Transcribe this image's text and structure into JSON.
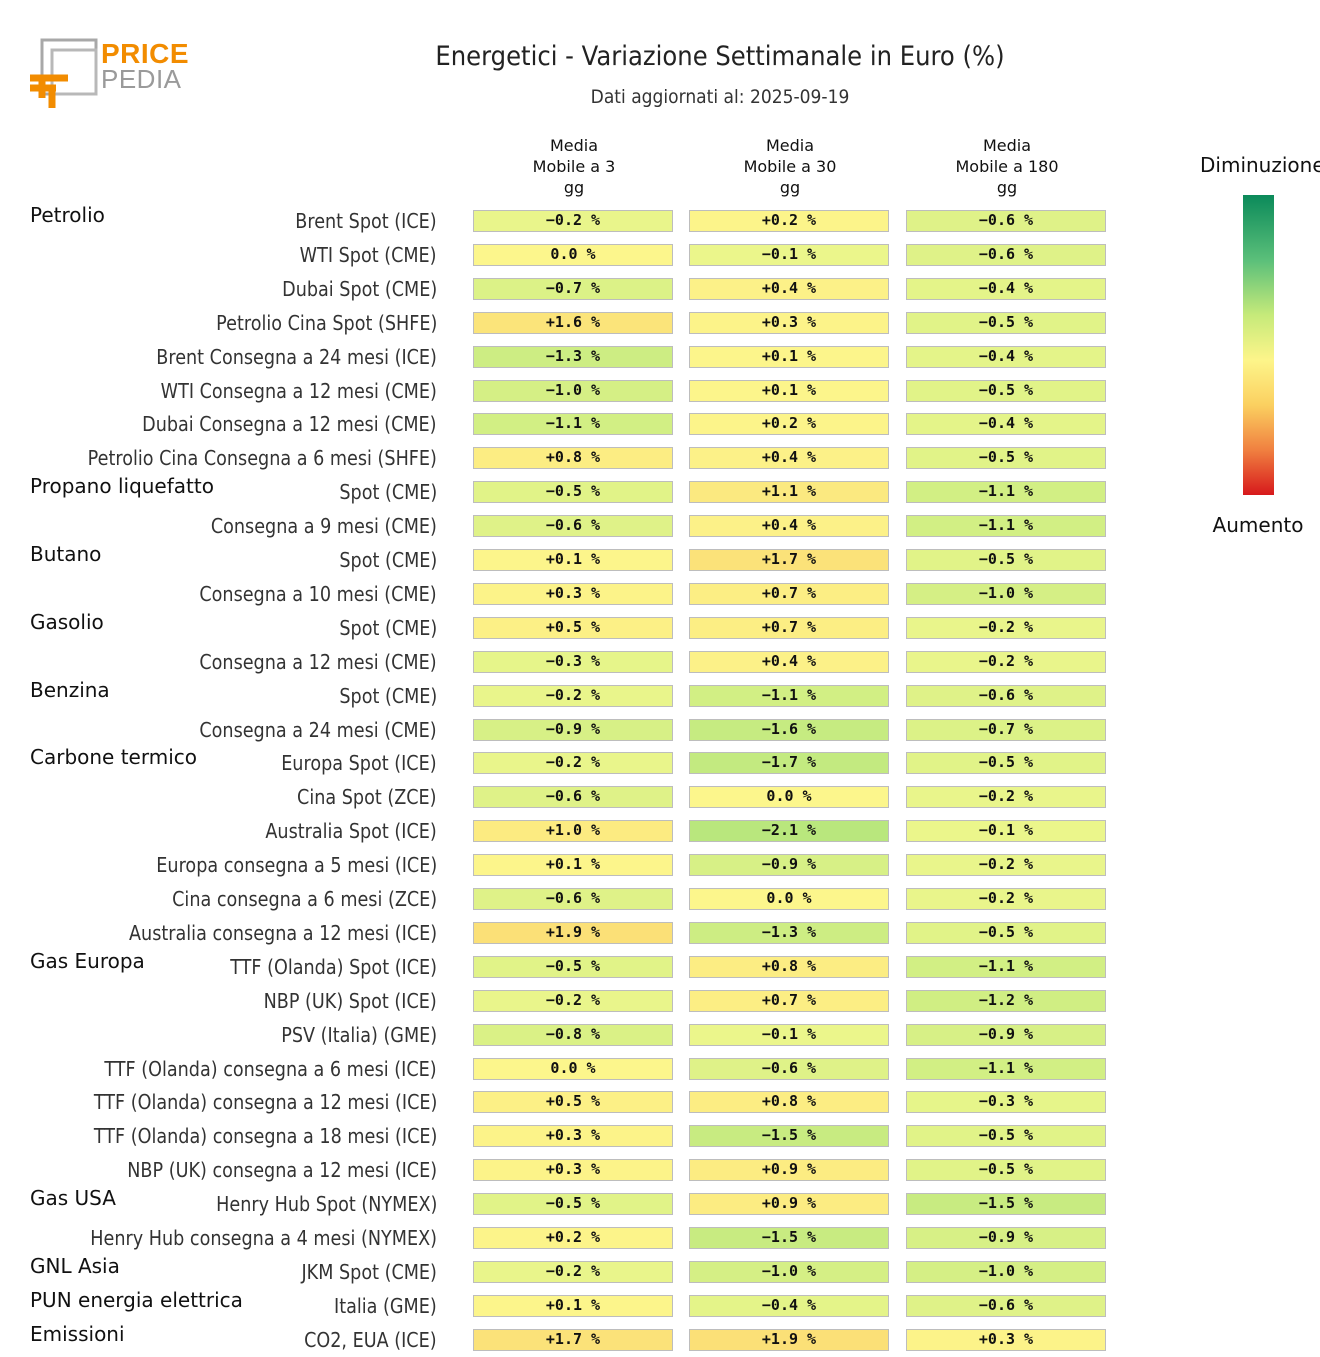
{
  "logo": {
    "line1": "PRICE",
    "line2": "PEDIA"
  },
  "header": {
    "title": "Energetici - Variazione Settimanale in Euro (%)",
    "subtitle": "Dati aggiornati al: 2025-09-19"
  },
  "columns": [
    [
      "Media",
      "Mobile a 3",
      "gg"
    ],
    [
      "Media",
      "Mobile a 30",
      "gg"
    ],
    [
      "Media",
      "Mobile a 180",
      "gg"
    ]
  ],
  "legend": {
    "top": "Diminuzione",
    "bottom": "Aumento"
  },
  "chart_data": {
    "type": "heatmap",
    "title": "Energetici - Variazione Settimanale in Euro (%)",
    "unit": "%",
    "columns": [
      "Media Mobile a 3 gg",
      "Media Mobile a 30 gg",
      "Media Mobile a 180 gg"
    ],
    "rows": [
      {
        "group": "Petrolio",
        "label": "Brent Spot (ICE)",
        "values": [
          -0.2,
          0.2,
          -0.6
        ]
      },
      {
        "group": "",
        "label": "WTI Spot (CME)",
        "values": [
          0.0,
          -0.1,
          -0.6
        ]
      },
      {
        "group": "",
        "label": "Dubai Spot (CME)",
        "values": [
          -0.7,
          0.4,
          -0.4
        ]
      },
      {
        "group": "",
        "label": "Petrolio Cina Spot (SHFE)",
        "values": [
          1.6,
          0.3,
          -0.5
        ]
      },
      {
        "group": "",
        "label": "Brent Consegna a 24 mesi (ICE)",
        "values": [
          -1.3,
          0.1,
          -0.4
        ]
      },
      {
        "group": "",
        "label": "WTI Consegna a 12 mesi (CME)",
        "values": [
          -1.0,
          0.1,
          -0.5
        ]
      },
      {
        "group": "",
        "label": "Dubai Consegna a 12 mesi (CME)",
        "values": [
          -1.1,
          0.2,
          -0.4
        ]
      },
      {
        "group": "",
        "label": "Petrolio Cina Consegna a 6 mesi (SHFE)",
        "values": [
          0.8,
          0.4,
          -0.5
        ]
      },
      {
        "group": "Propano liquefatto",
        "label": "Spot (CME)",
        "values": [
          -0.5,
          1.1,
          -1.1
        ]
      },
      {
        "group": "",
        "label": "Consegna a 9 mesi (CME)",
        "values": [
          -0.6,
          0.4,
          -1.1
        ]
      },
      {
        "group": "Butano",
        "label": "Spot (CME)",
        "values": [
          0.1,
          1.7,
          -0.5
        ]
      },
      {
        "group": "",
        "label": "Consegna a 10 mesi (CME)",
        "values": [
          0.3,
          0.7,
          -1.0
        ]
      },
      {
        "group": "Gasolio",
        "label": "Spot (CME)",
        "values": [
          0.5,
          0.7,
          -0.2
        ]
      },
      {
        "group": "",
        "label": "Consegna a 12 mesi (CME)",
        "values": [
          -0.3,
          0.4,
          -0.2
        ]
      },
      {
        "group": "Benzina",
        "label": "Spot (CME)",
        "values": [
          -0.2,
          -1.1,
          -0.6
        ]
      },
      {
        "group": "",
        "label": "Consegna a 24 mesi (CME)",
        "values": [
          -0.9,
          -1.6,
          -0.7
        ]
      },
      {
        "group": "Carbone termico",
        "label": "Europa Spot (ICE)",
        "values": [
          -0.2,
          -1.7,
          -0.5
        ]
      },
      {
        "group": "",
        "label": "Cina Spot (ZCE)",
        "values": [
          -0.6,
          0.0,
          -0.2
        ]
      },
      {
        "group": "",
        "label": "Australia Spot (ICE)",
        "values": [
          1.0,
          -2.1,
          -0.1
        ]
      },
      {
        "group": "",
        "label": "Europa consegna a 5 mesi (ICE)",
        "values": [
          0.1,
          -0.9,
          -0.2
        ]
      },
      {
        "group": "",
        "label": "Cina consegna a 6 mesi (ZCE)",
        "values": [
          -0.6,
          0.0,
          -0.2
        ]
      },
      {
        "group": "",
        "label": "Australia consegna a 12 mesi (ICE)",
        "values": [
          1.9,
          -1.3,
          -0.5
        ]
      },
      {
        "group": "Gas Europa",
        "label": "TTF (Olanda) Spot (ICE)",
        "values": [
          -0.5,
          0.8,
          -1.1
        ]
      },
      {
        "group": "",
        "label": "NBP (UK) Spot (ICE)",
        "values": [
          -0.2,
          0.7,
          -1.2
        ]
      },
      {
        "group": "",
        "label": "PSV (Italia) (GME)",
        "values": [
          -0.8,
          -0.1,
          -0.9
        ]
      },
      {
        "group": "",
        "label": "TTF (Olanda) consegna a 6 mesi (ICE)",
        "values": [
          0.0,
          -0.6,
          -1.1
        ]
      },
      {
        "group": "",
        "label": "TTF (Olanda) consegna a 12 mesi (ICE)",
        "values": [
          0.5,
          0.8,
          -0.3
        ]
      },
      {
        "group": "",
        "label": "TTF (Olanda) consegna a 18 mesi (ICE)",
        "values": [
          0.3,
          -1.5,
          -0.5
        ]
      },
      {
        "group": "",
        "label": "NBP (UK) consegna a 12 mesi (ICE)",
        "values": [
          0.3,
          0.9,
          -0.5
        ]
      },
      {
        "group": "Gas USA",
        "label": "Henry Hub Spot (NYMEX)",
        "values": [
          -0.5,
          0.9,
          -1.5
        ]
      },
      {
        "group": "",
        "label": "Henry Hub consegna a 4 mesi (NYMEX)",
        "values": [
          0.2,
          -1.5,
          -0.9
        ]
      },
      {
        "group": "GNL Asia",
        "label": "JKM Spot (CME)",
        "values": [
          -0.2,
          -1.0,
          -1.0
        ]
      },
      {
        "group": "PUN energia elettrica",
        "label": "Italia (GME)",
        "values": [
          0.1,
          -0.4,
          -0.6
        ]
      },
      {
        "group": "Emissioni",
        "label": "CO2, EUA (ICE)",
        "values": [
          1.7,
          1.9,
          0.3
        ]
      }
    ],
    "colorscale": [
      "#d7191c",
      "#fbd060",
      "#fdf58a",
      "#c6ea7a",
      "#0b8a5a"
    ],
    "legend_placement": "right"
  }
}
